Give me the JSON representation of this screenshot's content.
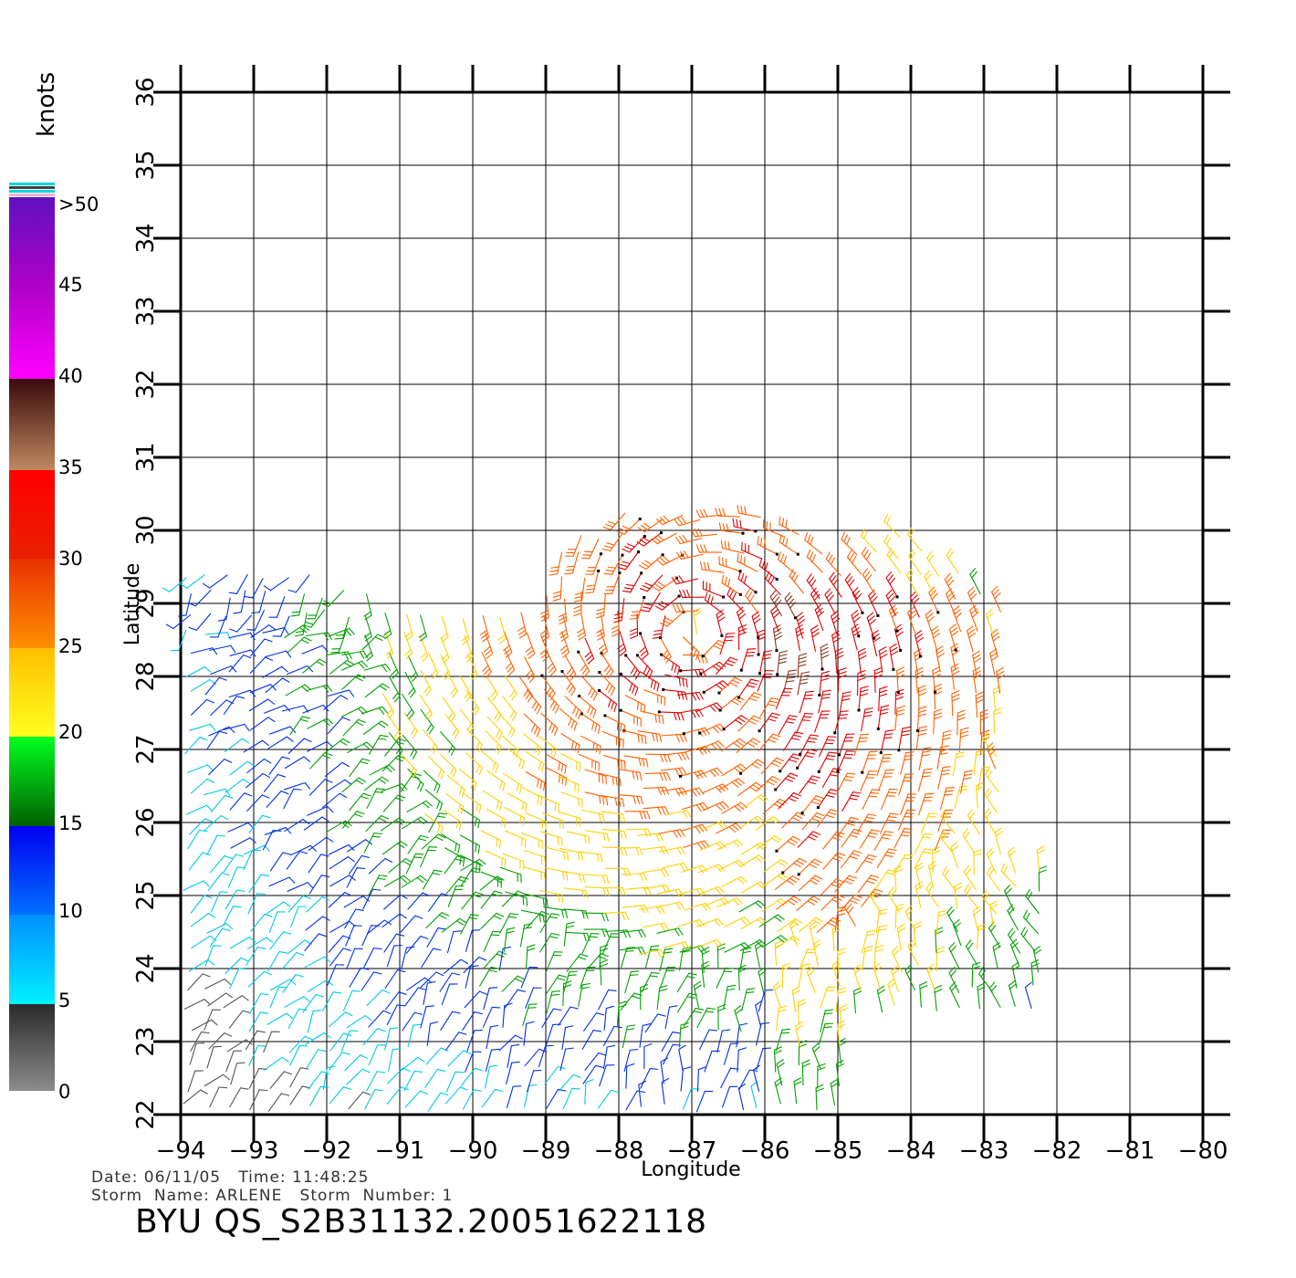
{
  "map": {
    "x_axis_label": "Longitude",
    "y_axis_label": "Latitude",
    "lon_ticks": [
      -94,
      -93,
      -92,
      -91,
      -90,
      -89,
      -88,
      -87,
      -86,
      -85,
      -84,
      -83,
      -82,
      -81,
      -80
    ],
    "lat_ticks": [
      22,
      23,
      24,
      25,
      26,
      27,
      28,
      29,
      30,
      31,
      32,
      33,
      34,
      35,
      36
    ],
    "lon_range": [
      -94,
      -80
    ],
    "lat_range": [
      22,
      36
    ],
    "grid": true,
    "coastline_color": "#707070",
    "storm_center": {
      "lon": -87.0,
      "lat": 28.6
    }
  },
  "legend": {
    "units": "knots",
    "labels": [
      ">50",
      "45",
      "40",
      "35",
      "30",
      "25",
      "20",
      "15",
      "10",
      "5",
      "0"
    ],
    "bins": [
      {
        "min": 0,
        "max": 5,
        "color": "#555555"
      },
      {
        "min": 5,
        "max": 10,
        "color": "#00c8e8"
      },
      {
        "min": 10,
        "max": 15,
        "color": "#0030e0"
      },
      {
        "min": 15,
        "max": 20,
        "color": "#00a000"
      },
      {
        "min": 20,
        "max": 25,
        "color": "#ffd000"
      },
      {
        "min": 25,
        "max": 30,
        "color": "#ff6000"
      },
      {
        "min": 30,
        "max": 35,
        "color": "#e00000"
      },
      {
        "min": 35,
        "max": 40,
        "color": "#8a3a20"
      },
      {
        "min": 40,
        "max": 50,
        "color": "#a000c0"
      }
    ]
  },
  "footer": {
    "line1": "Date: 06/11/05   Time: 11:48:25",
    "line2": "Storm  Name: ARLENE   Storm  Number: 1",
    "title": "BYU  QS_S2B31132.20051622118"
  }
}
